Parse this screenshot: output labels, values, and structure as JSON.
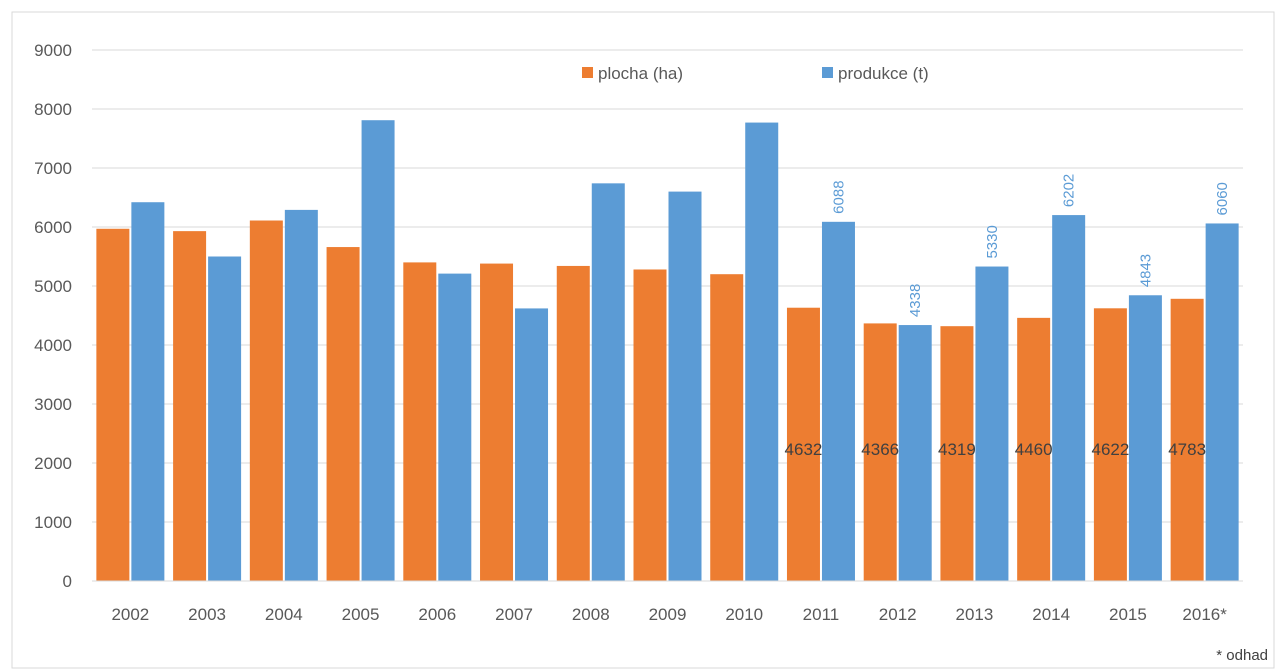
{
  "chart_data": {
    "type": "bar",
    "categories": [
      "2002",
      "2003",
      "2004",
      "2005",
      "2006",
      "2007",
      "2008",
      "2009",
      "2010",
      "2011",
      "2012",
      "2013",
      "2014",
      "2015",
      "2016*"
    ],
    "series": [
      {
        "name": "plocha (ha)",
        "color": "#ed7d31",
        "values": [
          5970,
          5930,
          6110,
          5660,
          5400,
          5380,
          5340,
          5280,
          5200,
          4632,
          4366,
          4319,
          4460,
          4622,
          4783
        ],
        "data_labels": [
          null,
          null,
          null,
          null,
          null,
          null,
          null,
          null,
          null,
          "4632",
          "4366",
          "4319",
          "4460",
          "4622",
          "4783"
        ]
      },
      {
        "name": "produkce (t)",
        "color": "#5b9bd5",
        "values": [
          6420,
          5500,
          6290,
          7810,
          5210,
          4620,
          6740,
          6600,
          7770,
          6088,
          4338,
          5330,
          6202,
          4843,
          6060
        ],
        "data_labels": [
          null,
          null,
          null,
          null,
          null,
          null,
          null,
          null,
          null,
          "6088",
          "4338",
          "5330",
          "6202",
          "4843",
          "6060"
        ]
      }
    ],
    "y_ticks": [
      "0",
      "1000",
      "2000",
      "3000",
      "4000",
      "5000",
      "6000",
      "7000",
      "8000",
      "9000"
    ],
    "ylim": [
      0,
      9000
    ],
    "grid": true,
    "legend_position": "top",
    "title": "",
    "xlabel": "",
    "ylabel": "",
    "footnote": "* odhad"
  }
}
